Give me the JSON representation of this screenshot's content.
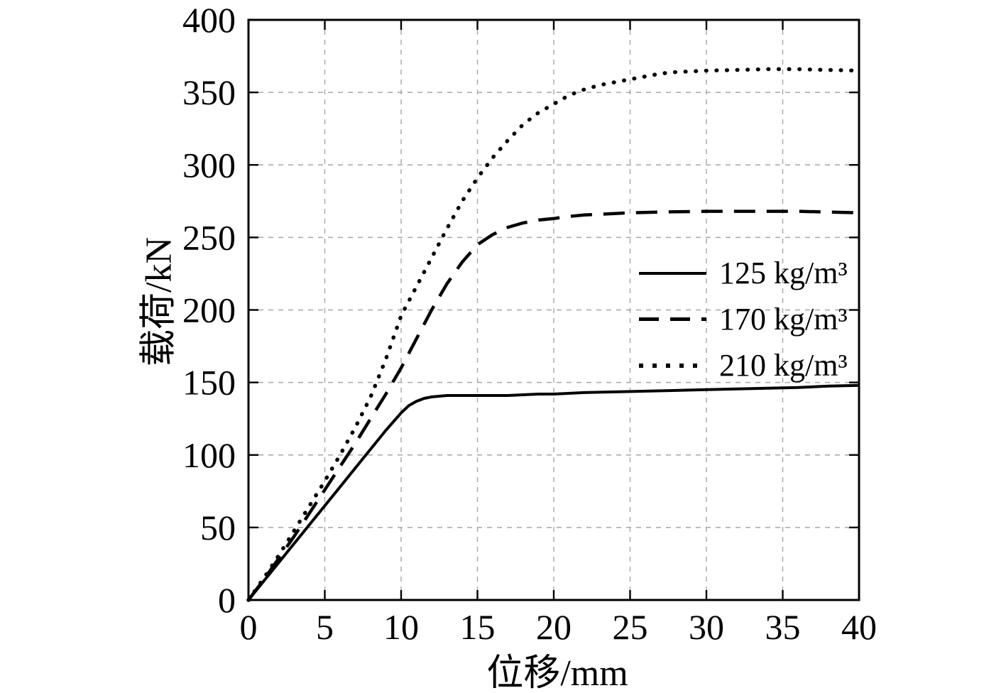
{
  "chart_data": {
    "type": "line",
    "title": "",
    "xlabel": "位移/mm",
    "ylabel": "载荷/kN",
    "xlim": [
      0,
      40
    ],
    "ylim": [
      0,
      400
    ],
    "xticks": [
      0,
      5,
      10,
      15,
      20,
      25,
      30,
      35,
      40
    ],
    "yticks": [
      0,
      50,
      100,
      150,
      200,
      250,
      300,
      350,
      400
    ],
    "grid": true,
    "grid_style": "dashed",
    "legend_position": "center-right",
    "colors": {
      "line": "#000000",
      "grid": "#a6a6a6",
      "background": "#ffffff"
    },
    "series": [
      {
        "name": "125 kg/m³",
        "style": "solid",
        "points": [
          [
            0,
            0
          ],
          [
            1,
            13
          ],
          [
            2,
            26
          ],
          [
            3,
            39
          ],
          [
            4,
            52
          ],
          [
            5,
            65
          ],
          [
            6,
            78
          ],
          [
            7,
            91
          ],
          [
            8,
            104
          ],
          [
            9,
            117
          ],
          [
            10,
            129
          ],
          [
            10.5,
            134
          ],
          [
            11,
            137
          ],
          [
            11.5,
            139
          ],
          [
            12,
            140
          ],
          [
            13,
            141
          ],
          [
            14,
            141
          ],
          [
            15,
            141
          ],
          [
            16,
            141
          ],
          [
            17,
            141
          ],
          [
            18,
            141.5
          ],
          [
            19,
            142
          ],
          [
            20,
            142
          ],
          [
            22,
            143
          ],
          [
            24,
            143.5
          ],
          [
            26,
            144
          ],
          [
            28,
            144.5
          ],
          [
            30,
            145
          ],
          [
            32,
            145.5
          ],
          [
            34,
            146
          ],
          [
            36,
            146.5
          ],
          [
            38,
            147.5
          ],
          [
            40,
            148
          ]
        ]
      },
      {
        "name": "170 kg/m³",
        "style": "dashed",
        "points": [
          [
            0,
            0
          ],
          [
            1,
            14
          ],
          [
            2,
            29
          ],
          [
            3,
            44
          ],
          [
            4,
            60
          ],
          [
            5,
            76
          ],
          [
            6,
            92
          ],
          [
            7,
            108
          ],
          [
            8,
            125
          ],
          [
            9,
            142
          ],
          [
            10,
            160
          ],
          [
            11,
            180
          ],
          [
            12,
            200
          ],
          [
            13,
            218
          ],
          [
            14,
            233
          ],
          [
            15,
            245
          ],
          [
            16,
            252
          ],
          [
            17,
            257
          ],
          [
            18,
            260
          ],
          [
            19,
            262
          ],
          [
            20,
            263
          ],
          [
            21,
            264.5
          ],
          [
            22,
            265.5
          ],
          [
            23,
            266
          ],
          [
            24,
            266.5
          ],
          [
            25,
            267
          ],
          [
            27,
            267.5
          ],
          [
            30,
            268
          ],
          [
            33,
            268
          ],
          [
            36,
            268
          ],
          [
            38,
            267.5
          ],
          [
            40,
            267
          ]
        ]
      },
      {
        "name": "210 kg/m³",
        "style": "dotted",
        "points": [
          [
            0,
            0
          ],
          [
            1,
            15
          ],
          [
            2,
            31
          ],
          [
            3,
            48
          ],
          [
            4,
            65
          ],
          [
            5,
            82
          ],
          [
            6,
            100
          ],
          [
            7,
            119
          ],
          [
            8,
            140
          ],
          [
            9,
            166
          ],
          [
            10,
            196
          ],
          [
            11,
            216
          ],
          [
            12,
            236
          ],
          [
            13,
            256
          ],
          [
            14,
            275
          ],
          [
            15,
            291
          ],
          [
            16,
            305
          ],
          [
            17,
            317
          ],
          [
            18,
            328
          ],
          [
            19,
            336
          ],
          [
            20,
            342
          ],
          [
            21,
            348
          ],
          [
            22,
            352
          ],
          [
            23,
            355
          ],
          [
            24,
            357
          ],
          [
            25,
            359
          ],
          [
            26,
            361
          ],
          [
            27,
            363
          ],
          [
            28,
            364
          ],
          [
            29,
            364.5
          ],
          [
            30,
            365
          ],
          [
            32,
            365.5
          ],
          [
            34,
            366
          ],
          [
            36,
            366
          ],
          [
            38,
            365.5
          ],
          [
            40,
            365
          ]
        ]
      }
    ]
  }
}
